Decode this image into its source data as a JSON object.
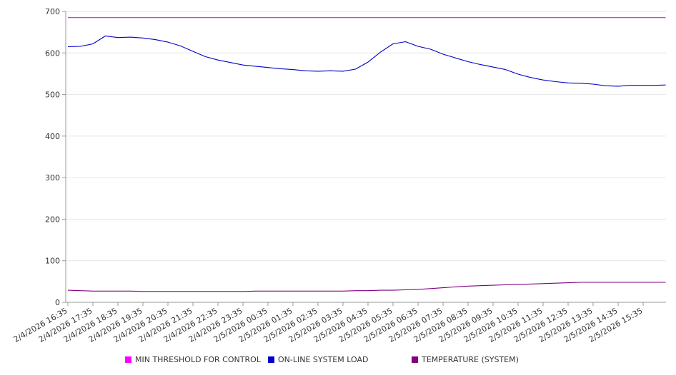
{
  "chart_data": {
    "type": "line",
    "title": "",
    "xlabel": "",
    "ylabel": "",
    "ylim": [
      0,
      700
    ],
    "yticks": [
      0,
      100,
      200,
      300,
      400,
      500,
      600,
      700
    ],
    "grid": true,
    "legend_position": "bottom",
    "x_tick_labels": [
      "2/4/2026 16:35",
      "2/4/2026 17:35",
      "2/4/2026 18:35",
      "2/4/2026 19:35",
      "2/4/2026 20:35",
      "2/4/2026 21:35",
      "2/4/2026 22:35",
      "2/4/2026 23:35",
      "2/5/2026 00:35",
      "2/5/2026 01:35",
      "2/5/2026 02:35",
      "2/5/2026 03:35",
      "2/5/2026 04:35",
      "2/5/2026 05:35",
      "2/5/2026 06:35",
      "2/5/2026 07:35",
      "2/5/2026 08:35",
      "2/5/2026 09:35",
      "2/5/2026 10:35",
      "2/5/2026 11:35",
      "2/5/2026 12:35",
      "2/5/2026 13:35",
      "2/5/2026 14:35",
      "2/5/2026 15:35"
    ],
    "x_hours": [
      0,
      0.5,
      1,
      1.5,
      2,
      2.5,
      3,
      3.5,
      4,
      4.5,
      5,
      5.5,
      6,
      6.5,
      7,
      7.5,
      8,
      8.5,
      9,
      9.5,
      10,
      10.5,
      11,
      11.5,
      12,
      12.5,
      13,
      13.5,
      14,
      14.5,
      15,
      15.5,
      16,
      16.5,
      17,
      17.5,
      18,
      18.5,
      19,
      19.5,
      20,
      20.5,
      21,
      21.5,
      22,
      22.5,
      23,
      23.5,
      23.9
    ],
    "series": [
      {
        "name": "MIN THRESHOLD FOR CONTROL",
        "color": "#ff00ff",
        "values": [
          685,
          685,
          685,
          685,
          685,
          685,
          685,
          685,
          685,
          685,
          685,
          685,
          685,
          685,
          685,
          685,
          685,
          685,
          685,
          685,
          685,
          685,
          685,
          685,
          685,
          685,
          685,
          685,
          685,
          685,
          685,
          685,
          685,
          685,
          685,
          685,
          685,
          685,
          685,
          685,
          685,
          685,
          685,
          685,
          685,
          685,
          685,
          685,
          685
        ]
      },
      {
        "name": "ON-LINE SYSTEM LOAD",
        "color": "#0000cc",
        "values": [
          615,
          616,
          622,
          641,
          637,
          638,
          636,
          632,
          626,
          617,
          604,
          591,
          583,
          577,
          571,
          568,
          565,
          562,
          560,
          557,
          556,
          557,
          556,
          561,
          578,
          602,
          622,
          627,
          616,
          609,
          597,
          588,
          579,
          572,
          566,
          560,
          549,
          541,
          535,
          531,
          528,
          527,
          525,
          521,
          520,
          522,
          522,
          522,
          523
        ]
      },
      {
        "name": "TEMPERATURE (SYSTEM)",
        "color": "#800080",
        "values": [
          29,
          28,
          27,
          27,
          27,
          27,
          26,
          26,
          26,
          26,
          26,
          26,
          26,
          26,
          26,
          27,
          27,
          27,
          27,
          27,
          27,
          27,
          27,
          28,
          28,
          29,
          29,
          30,
          31,
          33,
          35,
          37,
          39,
          40,
          41,
          42,
          43,
          44,
          45,
          46,
          47,
          48,
          48,
          48,
          48,
          48,
          48,
          48,
          48
        ]
      }
    ]
  },
  "legend": {
    "items": [
      {
        "label": "MIN THRESHOLD FOR CONTROL",
        "color": "#ff00ff"
      },
      {
        "label": "ON-LINE SYSTEM LOAD",
        "color": "#0000cc"
      },
      {
        "label": "TEMPERATURE (SYSTEM)",
        "color": "#800080"
      }
    ]
  }
}
